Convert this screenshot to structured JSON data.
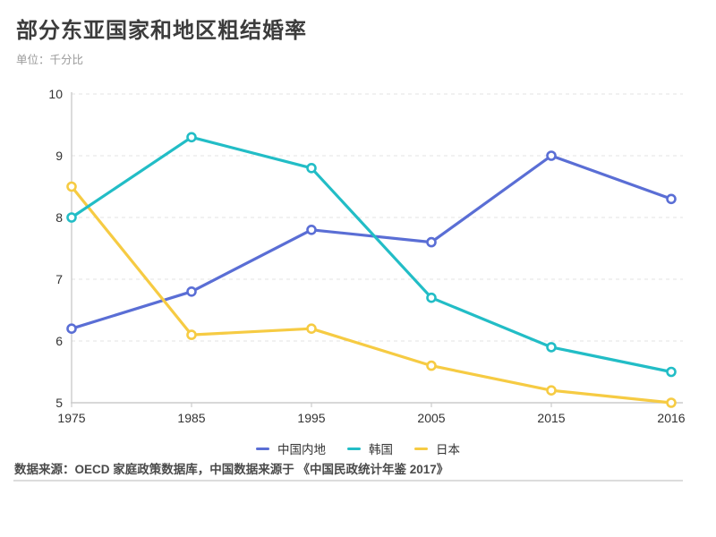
{
  "header": {
    "title": "部分东亚国家和地区粗结婚率",
    "subtitle": "单位：千分比"
  },
  "footer": {
    "source": "数据来源：OECD 家庭政策数据库，中国数据来源于 《中国民政统计年鉴 2017》"
  },
  "colors": {
    "china_mainland": "#5A6ED5",
    "korea": "#22BDC6",
    "japan": "#F6CB43",
    "axis": "#cccccc",
    "grid": "#e3e3e3",
    "tick_text": "#333333"
  },
  "chart_data": {
    "type": "line",
    "title": "部分东亚国家和地区粗结婚率",
    "unit_label": "单位：千分比",
    "categories": [
      "1975",
      "1985",
      "1995",
      "2005",
      "2015",
      "2016"
    ],
    "series": [
      {
        "name": "中国内地",
        "slug": "china-mainland",
        "color": "#5A6ED5",
        "values": [
          6.2,
          6.8,
          7.8,
          7.6,
          9.0,
          8.3
        ]
      },
      {
        "name": "韩国",
        "slug": "korea",
        "color": "#22BDC6",
        "values": [
          8.0,
          9.3,
          8.8,
          6.7,
          5.9,
          5.5
        ]
      },
      {
        "name": "日本",
        "slug": "japan",
        "color": "#F6CB43",
        "values": [
          8.5,
          6.1,
          6.2,
          5.6,
          5.2,
          5.0
        ]
      }
    ],
    "ylim": [
      5,
      10
    ],
    "y_ticks": [
      5,
      6,
      7,
      8,
      9,
      10
    ],
    "xlabel": "",
    "ylabel": "",
    "grid": "horizontal-dashed",
    "legend_position": "bottom",
    "marker": "hollow-circle"
  }
}
